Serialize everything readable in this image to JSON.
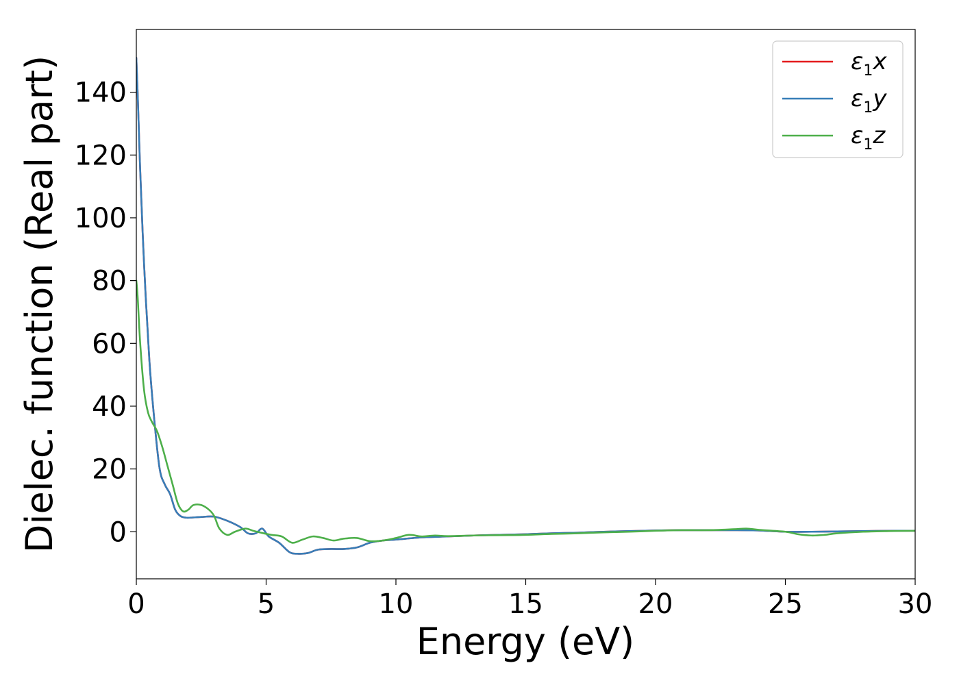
{
  "chart_data": {
    "type": "line",
    "xlabel": "Energy (eV)",
    "ylabel": "Dielec. function (Real part)",
    "xlim": [
      0,
      30
    ],
    "ylim": [
      -15,
      160
    ],
    "xticks": [
      "0",
      "5",
      "10",
      "15",
      "20",
      "25",
      "30"
    ],
    "yticks": [
      "0",
      "20",
      "40",
      "60",
      "80",
      "100",
      "120",
      "140"
    ],
    "grid": false,
    "legend_position": "top-right",
    "series": [
      {
        "name": "ε₁x",
        "legend_main": "ε",
        "legend_sub": "1",
        "legend_tail": "x",
        "color": "#e41a1c",
        "x": [
          0,
          0.05,
          0.15,
          0.3,
          0.5,
          0.7,
          0.9,
          1.1,
          1.3,
          1.5,
          1.7,
          1.9,
          2.1,
          2.5,
          3.0,
          3.5,
          4.0,
          4.3,
          4.6,
          4.85,
          5.1,
          5.5,
          5.9,
          6.2,
          6.6,
          7.0,
          7.5,
          8.0,
          8.5,
          9.0,
          9.5,
          10.0,
          11,
          12,
          13,
          14,
          15,
          16,
          17,
          18,
          19,
          20,
          21,
          22,
          23,
          24,
          25,
          26,
          27,
          28,
          29,
          30
        ],
        "y": [
          151,
          140,
          115,
          85,
          55,
          35,
          20,
          15,
          12,
          7,
          5,
          4.5,
          4.5,
          4.7,
          4.8,
          3.5,
          1.5,
          -0.5,
          -0.5,
          1.0,
          -1.5,
          -3.5,
          -6.5,
          -7,
          -6.8,
          -5.7,
          -5.5,
          -5.5,
          -5.0,
          -3.5,
          -2.8,
          -2.5,
          -1.8,
          -1.5,
          -1.2,
          -1.0,
          -0.8,
          -0.5,
          -0.3,
          0.0,
          0.2,
          0.4,
          0.5,
          0.5,
          0.5,
          0.4,
          0.0,
          0.0,
          0.1,
          0.2,
          0.3,
          0.3
        ]
      },
      {
        "name": "ε₁y",
        "legend_main": "ε",
        "legend_sub": "1",
        "legend_tail": "y",
        "color": "#377eb8",
        "x": [
          0,
          0.05,
          0.15,
          0.3,
          0.5,
          0.7,
          0.9,
          1.1,
          1.3,
          1.5,
          1.7,
          1.9,
          2.1,
          2.5,
          3.0,
          3.5,
          4.0,
          4.3,
          4.6,
          4.85,
          5.1,
          5.5,
          5.9,
          6.2,
          6.6,
          7.0,
          7.5,
          8.0,
          8.5,
          9.0,
          9.5,
          10.0,
          11,
          12,
          13,
          14,
          15,
          16,
          17,
          18,
          19,
          20,
          21,
          22,
          23,
          24,
          25,
          26,
          27,
          28,
          29,
          30
        ],
        "y": [
          151,
          140,
          115,
          85,
          55,
          35,
          20,
          15,
          12,
          7,
          5,
          4.5,
          4.5,
          4.7,
          4.8,
          3.5,
          1.5,
          -0.5,
          -0.5,
          1.0,
          -1.5,
          -3.5,
          -6.5,
          -7,
          -6.8,
          -5.7,
          -5.5,
          -5.5,
          -5.0,
          -3.5,
          -2.8,
          -2.5,
          -1.8,
          -1.5,
          -1.2,
          -1.0,
          -0.8,
          -0.5,
          -0.3,
          0.0,
          0.2,
          0.4,
          0.5,
          0.5,
          0.5,
          0.4,
          0.0,
          0.0,
          0.1,
          0.2,
          0.3,
          0.3
        ]
      },
      {
        "name": "ε₁z",
        "legend_main": "ε",
        "legend_sub": "1",
        "legend_tail": "z",
        "color": "#4daf4a",
        "x": [
          0,
          0.05,
          0.15,
          0.3,
          0.45,
          0.6,
          0.8,
          1.0,
          1.2,
          1.4,
          1.6,
          1.8,
          2.0,
          2.2,
          2.5,
          2.8,
          3.0,
          3.2,
          3.5,
          3.8,
          4.2,
          4.5,
          4.8,
          5.2,
          5.6,
          6.0,
          6.4,
          6.8,
          7.2,
          7.6,
          8.0,
          8.5,
          9.0,
          9.5,
          10.0,
          10.5,
          11.0,
          11.5,
          12,
          13,
          14,
          15,
          16,
          17,
          18,
          19,
          20,
          21,
          22,
          23,
          23.5,
          24,
          25,
          25.5,
          26,
          26.5,
          27,
          28,
          29,
          30
        ],
        "y": [
          80,
          75,
          60,
          45,
          38,
          35,
          32,
          27,
          21,
          15,
          9,
          6.5,
          7,
          8.5,
          8.5,
          7,
          5,
          1,
          -1,
          0,
          1,
          0.3,
          -0.3,
          -1,
          -1.5,
          -3.5,
          -2.5,
          -1.5,
          -2,
          -2.8,
          -2.2,
          -2,
          -3,
          -2.8,
          -2,
          -1,
          -1.5,
          -1.2,
          -1.4,
          -1.2,
          -1.1,
          -1.0,
          -0.7,
          -0.5,
          -0.2,
          0,
          0.3,
          0.5,
          0.5,
          0.8,
          1.0,
          0.6,
          0.0,
          -0.8,
          -1.2,
          -1.0,
          -0.5,
          0,
          0.2,
          0.3
        ]
      }
    ]
  }
}
